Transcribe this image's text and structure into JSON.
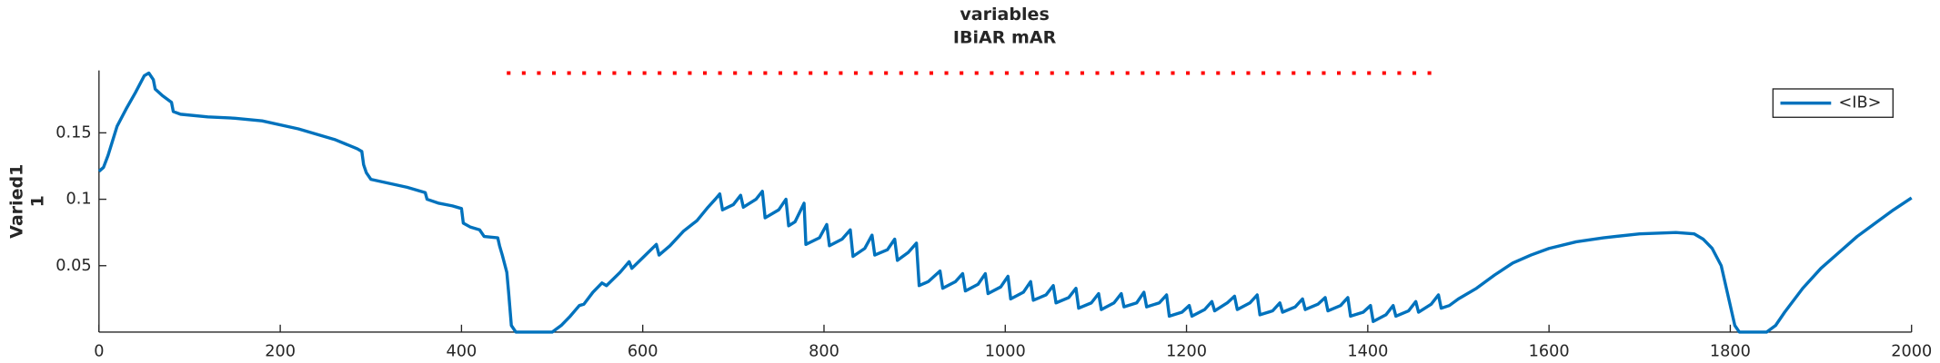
{
  "chart_data": {
    "type": "line",
    "title": "variables",
    "subtitle": "IBiAR mAR",
    "y_label": [
      "Varied1",
      "1"
    ],
    "x": [
      0,
      5,
      10,
      20,
      30,
      40,
      50,
      55,
      60,
      62,
      70,
      80,
      82,
      90,
      120,
      150,
      180,
      220,
      260,
      285,
      290,
      292,
      295,
      300,
      320,
      340,
      360,
      362,
      375,
      390,
      400,
      402,
      410,
      420,
      425,
      440,
      442,
      445,
      450,
      452,
      455,
      460,
      500,
      510,
      520,
      530,
      535,
      545,
      555,
      560,
      575,
      585,
      588,
      600,
      615,
      618,
      630,
      645,
      660,
      672,
      680,
      685,
      688,
      700,
      708,
      711,
      725,
      732,
      735,
      750,
      758,
      761,
      768,
      778,
      780,
      795,
      803,
      806,
      820,
      829,
      832,
      845,
      853,
      856,
      870,
      878,
      881,
      893,
      902,
      905,
      915,
      928,
      931,
      945,
      953,
      956,
      970,
      978,
      981,
      995,
      1003,
      1006,
      1020,
      1028,
      1031,
      1045,
      1053,
      1056,
      1070,
      1078,
      1081,
      1095,
      1103,
      1106,
      1120,
      1128,
      1131,
      1145,
      1153,
      1156,
      1170,
      1178,
      1181,
      1195,
      1203,
      1206,
      1220,
      1228,
      1231,
      1245,
      1253,
      1256,
      1270,
      1278,
      1281,
      1295,
      1303,
      1306,
      1320,
      1328,
      1331,
      1345,
      1353,
      1356,
      1370,
      1378,
      1381,
      1395,
      1403,
      1406,
      1420,
      1428,
      1431,
      1445,
      1453,
      1456,
      1470,
      1478,
      1481,
      1490,
      1500,
      1520,
      1540,
      1560,
      1580,
      1600,
      1630,
      1660,
      1700,
      1740,
      1760,
      1770,
      1780,
      1790,
      1795,
      1800,
      1805,
      1810,
      1840,
      1850,
      1860,
      1880,
      1900,
      1920,
      1940,
      1960,
      1980,
      2000
    ],
    "series": [
      {
        "name": "<IB>",
        "color": "#0072bd",
        "values": [
          0.121,
          0.124,
          0.133,
          0.155,
          0.168,
          0.18,
          0.193,
          0.195,
          0.19,
          0.183,
          0.178,
          0.173,
          0.166,
          0.164,
          0.162,
          0.161,
          0.159,
          0.153,
          0.145,
          0.138,
          0.136,
          0.126,
          0.12,
          0.115,
          0.112,
          0.109,
          0.105,
          0.1,
          0.097,
          0.095,
          0.093,
          0.082,
          0.079,
          0.077,
          0.072,
          0.071,
          0.065,
          0.058,
          0.045,
          0.03,
          0.005,
          0,
          0,
          0.005,
          0.012,
          0.02,
          0.021,
          0.03,
          0.037,
          0.035,
          0.045,
          0.053,
          0.048,
          0.056,
          0.066,
          0.058,
          0.065,
          0.076,
          0.084,
          0.094,
          0.1,
          0.104,
          0.092,
          0.096,
          0.103,
          0.094,
          0.1,
          0.106,
          0.086,
          0.092,
          0.1,
          0.08,
          0.083,
          0.097,
          0.066,
          0.071,
          0.081,
          0.065,
          0.07,
          0.077,
          0.057,
          0.063,
          0.073,
          0.058,
          0.062,
          0.07,
          0.054,
          0.06,
          0.067,
          0.035,
          0.038,
          0.046,
          0.033,
          0.038,
          0.044,
          0.031,
          0.036,
          0.044,
          0.029,
          0.034,
          0.042,
          0.025,
          0.03,
          0.038,
          0.024,
          0.028,
          0.035,
          0.022,
          0.026,
          0.033,
          0.018,
          0.022,
          0.029,
          0.017,
          0.022,
          0.029,
          0.019,
          0.022,
          0.03,
          0.019,
          0.022,
          0.028,
          0.012,
          0.015,
          0.02,
          0.012,
          0.017,
          0.023,
          0.016,
          0.022,
          0.027,
          0.017,
          0.022,
          0.028,
          0.013,
          0.016,
          0.022,
          0.015,
          0.019,
          0.025,
          0.017,
          0.021,
          0.026,
          0.016,
          0.02,
          0.026,
          0.012,
          0.015,
          0.02,
          0.008,
          0.013,
          0.02,
          0.012,
          0.016,
          0.023,
          0.015,
          0.021,
          0.028,
          0.018,
          0.02,
          0.025,
          0.033,
          0.043,
          0.052,
          0.058,
          0.063,
          0.068,
          0.071,
          0.074,
          0.075,
          0.074,
          0.07,
          0.063,
          0.05,
          0.035,
          0.02,
          0.005,
          0,
          0,
          0.005,
          0.015,
          0.033,
          0.048,
          0.06,
          0.072,
          0.082,
          0.092,
          0.101
        ]
      }
    ],
    "reference_line": {
      "x": [
        450,
        1480
      ],
      "y": 0.195,
      "color": "#ff0000"
    },
    "xlim": [
      0,
      2000
    ],
    "xticks": [
      0,
      200,
      400,
      600,
      800,
      1000,
      1200,
      1400,
      1600,
      1800,
      2000
    ],
    "ylim": [
      0,
      0.197
    ],
    "yticks": [
      0.05,
      0.1,
      0.15
    ],
    "legend": "top-right"
  }
}
